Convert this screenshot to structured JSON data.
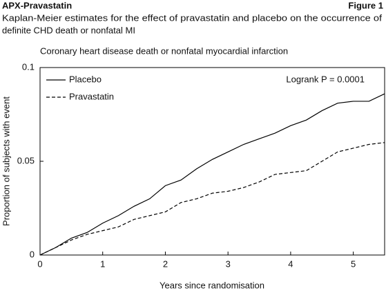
{
  "header": {
    "left": "APX-Pravastatin",
    "right": "Figure 1"
  },
  "caption": [
    "Kaplan-Meier estimates for the effect of pravastatin and placebo on the occurrence of",
    "definite CHD death or nonfatal MI"
  ],
  "chart_data": {
    "type": "line",
    "title": "Coronary heart disease death or nonfatal myocardial infarction",
    "xlabel": "Years since randomisation",
    "ylabel": "Proportion of subjects with event",
    "annotation": "Logrank P = 0.0001",
    "legend": "upper left",
    "x": [
      0,
      0.25,
      0.5,
      0.75,
      1,
      1.25,
      1.5,
      1.75,
      2,
      2.25,
      2.5,
      2.75,
      3,
      3.25,
      3.5,
      3.75,
      4,
      4.25,
      4.5,
      4.75,
      5,
      5.25,
      5.5
    ],
    "series": [
      {
        "name": "Placebo",
        "color": "#000000",
        "style": "solid",
        "values": [
          0,
          0.004,
          0.009,
          0.012,
          0.017,
          0.021,
          0.026,
          0.03,
          0.037,
          0.04,
          0.046,
          0.051,
          0.055,
          0.059,
          0.062,
          0.065,
          0.069,
          0.072,
          0.077,
          0.081,
          0.082,
          0.082,
          0.086
        ]
      },
      {
        "name": "Pravastatin",
        "color": "#000000",
        "style": "dashed",
        "values": [
          0,
          0.004,
          0.008,
          0.011,
          0.013,
          0.015,
          0.019,
          0.021,
          0.023,
          0.028,
          0.03,
          0.033,
          0.034,
          0.036,
          0.039,
          0.043,
          0.044,
          0.045,
          0.05,
          0.055,
          0.057,
          0.059,
          0.06
        ]
      }
    ],
    "xlim": [
      0,
      5.5
    ],
    "xticks": [
      0,
      1,
      2,
      3,
      4,
      5
    ],
    "ylim": [
      0,
      0.1
    ],
    "yticks": [
      0,
      0.05,
      0.1
    ]
  }
}
